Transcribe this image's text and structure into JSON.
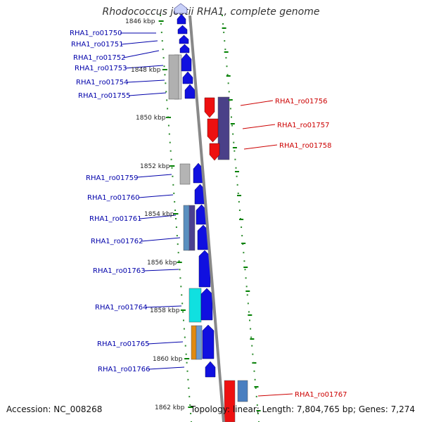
{
  "title": "Rhodococcus jostii RHA1, complete genome",
  "accession": "Accession: NC_008268",
  "topology": "Topology: linear; Length: 7,804,765 bp; Genes: 7,274",
  "colors": {
    "forward_label": "#0000aa",
    "reverse_label": "#cc0000",
    "tick": "#008000",
    "backbone": "#888888"
  },
  "ticks": [
    {
      "label": "1846 kbp"
    },
    {
      "label": "1848 kbp"
    },
    {
      "label": "1850 kbp"
    },
    {
      "label": "1852 kbp"
    },
    {
      "label": "1854 kbp"
    },
    {
      "label": "1856 kbp"
    },
    {
      "label": "1858 kbp"
    },
    {
      "label": "1860 kbp"
    },
    {
      "label": "1862 kbp"
    }
  ],
  "forward_genes": [
    {
      "label": "RHA1_ro01750"
    },
    {
      "label": "RHA1_ro01751"
    },
    {
      "label": "RHA1_ro01752"
    },
    {
      "label": "RHA1_ro01753"
    },
    {
      "label": "RHA1_ro01754"
    },
    {
      "label": "RHA1_ro01755"
    },
    {
      "label": "RHA1_ro01759"
    },
    {
      "label": "RHA1_ro01760"
    },
    {
      "label": "RHA1_ro01761"
    },
    {
      "label": "RHA1_ro01762"
    },
    {
      "label": "RHA1_ro01763"
    },
    {
      "label": "RHA1_ro01764"
    },
    {
      "label": "RHA1_ro01765"
    },
    {
      "label": "RHA1_ro01766"
    }
  ],
  "reverse_genes": [
    {
      "label": "RHA1_ro01756"
    },
    {
      "label": "RHA1_ro01757"
    },
    {
      "label": "RHA1_ro01758"
    },
    {
      "label": "RHA1_ro01767"
    }
  ]
}
